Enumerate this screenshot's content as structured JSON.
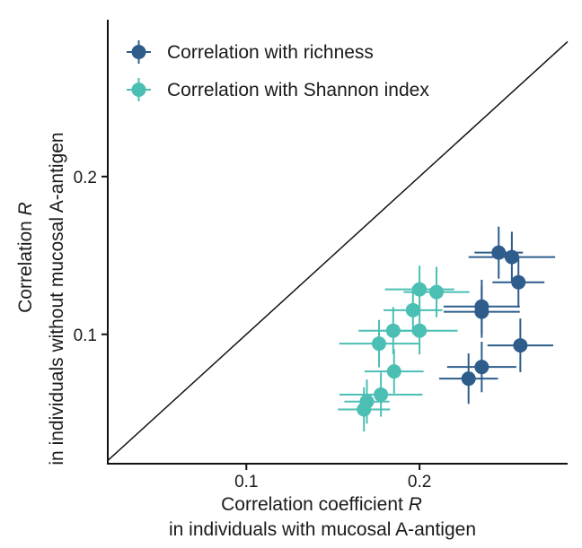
{
  "chart_data": {
    "type": "scatter",
    "title": "",
    "xlabel": {
      "prefix": "Correlation coefficient ",
      "italic": "R",
      "line2": "in individuals with mucosal A-antigen"
    },
    "ylabel": {
      "prefix": "Correlation ",
      "italic": "R",
      "line2": "in individuals without mucosal A-antigen"
    },
    "xlim": [
      0.02,
      0.2855
    ],
    "ylim": [
      0.018,
      0.2994
    ],
    "xticks": [
      {
        "value": 0.1,
        "label": "0.1"
      },
      {
        "value": 0.2,
        "label": "0.2"
      }
    ],
    "yticks": [
      {
        "value": 0.1,
        "label": "0.1"
      },
      {
        "value": 0.2,
        "label": "0.2"
      }
    ],
    "identity_line": true,
    "legend_position": "top-left",
    "series": [
      {
        "name": "Correlation with richness",
        "color": "#2e5d8c",
        "points": [
          {
            "x": 0.2457,
            "y": 0.1518,
            "xerr": 0.014,
            "yerr": 0.0165
          },
          {
            "x": 0.2533,
            "y": 0.149,
            "xerr": 0.025,
            "yerr": 0.016
          },
          {
            "x": 0.2571,
            "y": 0.133,
            "xerr": 0.015,
            "yerr": 0.016
          },
          {
            "x": 0.2359,
            "y": 0.1176,
            "xerr": 0.022,
            "yerr": 0.017
          },
          {
            "x": 0.2359,
            "y": 0.1143,
            "xerr": 0.022,
            "yerr": 0.0165
          },
          {
            "x": 0.2582,
            "y": 0.093,
            "xerr": 0.019,
            "yerr": 0.017
          },
          {
            "x": 0.2359,
            "y": 0.0793,
            "xerr": 0.02,
            "yerr": 0.016
          },
          {
            "x": 0.2283,
            "y": 0.0719,
            "xerr": 0.017,
            "yerr": 0.016
          }
        ]
      },
      {
        "name": "Correlation with Shannon index",
        "color": "#4bbfb3",
        "points": [
          {
            "x": 0.2,
            "y": 0.1285,
            "xerr": 0.02,
            "yerr": 0.015
          },
          {
            "x": 0.2098,
            "y": 0.1268,
            "xerr": 0.019,
            "yerr": 0.016
          },
          {
            "x": 0.1962,
            "y": 0.1153,
            "xerr": 0.017,
            "yerr": 0.015
          },
          {
            "x": 0.1848,
            "y": 0.1023,
            "xerr": 0.02,
            "yerr": 0.015
          },
          {
            "x": 0.2,
            "y": 0.1023,
            "xerr": 0.022,
            "yerr": 0.015
          },
          {
            "x": 0.1766,
            "y": 0.0941,
            "xerr": 0.023,
            "yerr": 0.015
          },
          {
            "x": 0.1853,
            "y": 0.0765,
            "xerr": 0.017,
            "yerr": 0.014
          },
          {
            "x": 0.1777,
            "y": 0.0618,
            "xerr": 0.024,
            "yerr": 0.014
          },
          {
            "x": 0.1696,
            "y": 0.0574,
            "xerr": 0.013,
            "yerr": 0.014
          },
          {
            "x": 0.1679,
            "y": 0.0524,
            "xerr": 0.015,
            "yerr": 0.014
          }
        ]
      }
    ]
  }
}
